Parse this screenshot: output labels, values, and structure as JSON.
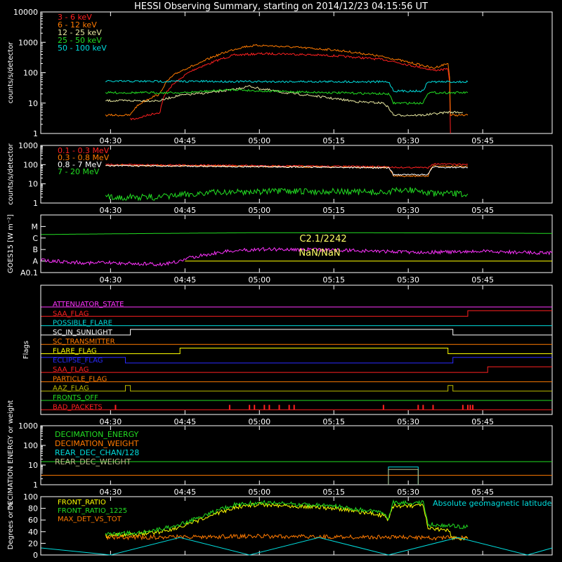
{
  "title": "HESSI Observing Summary, starting on 2014/12/23 04:15:56 UT",
  "time_axis": {
    "start": "04:15:56",
    "end": "05:59:00",
    "tick_labels": [
      "04:30",
      "04:45",
      "05:00",
      "05:15",
      "05:30",
      "05:45"
    ],
    "tick_times": [
      "04:30",
      "04:45",
      "05:00",
      "05:15",
      "05:30",
      "05:45"
    ]
  },
  "chart_data": [
    {
      "type": "line",
      "panel": "light_curves",
      "ylabel": "counts/s/detector",
      "yscale": "log",
      "ylim": [
        1,
        10000
      ],
      "y_tick_labels": [
        "1",
        "10",
        "100",
        "1000",
        "10000"
      ],
      "y_ticks": [
        1,
        10,
        100,
        1000,
        10000
      ],
      "series": [
        {
          "name": "3 - 6 keV",
          "color": "#ff2020",
          "x": [
            "04:34",
            "04:35",
            "04:40",
            "04:44",
            "04:50",
            "04:55",
            "05:00",
            "05:05",
            "05:15",
            "05:25",
            "05:30",
            "05:35",
            "05:38",
            "05:38:30"
          ],
          "y": [
            3,
            3,
            5,
            60,
            200,
            380,
            420,
            420,
            360,
            270,
            180,
            120,
            130,
            1
          ]
        },
        {
          "name": "6 - 12 keV",
          "color": "#ff7a00",
          "x": [
            "04:29",
            "04:34",
            "04:35",
            "04:40",
            "04:44",
            "04:48",
            "04:52",
            "04:57",
            "05:00",
            "05:05",
            "05:15",
            "05:25",
            "05:30",
            "05:35",
            "05:38",
            "05:38:30",
            "05:42"
          ],
          "y": [
            4,
            4,
            7,
            20,
            110,
            200,
            400,
            720,
            800,
            720,
            560,
            330,
            220,
            140,
            200,
            4,
            4
          ]
        },
        {
          "name": "12 - 25 keV",
          "color": "#e8e8a0",
          "x": [
            "04:29",
            "04:40",
            "04:44",
            "04:50",
            "04:55",
            "04:58",
            "05:00",
            "05:05",
            "05:15",
            "05:20",
            "05:25",
            "05:27",
            "05:33",
            "05:38",
            "05:41"
          ],
          "y": [
            12,
            12,
            18,
            22,
            28,
            36,
            30,
            22,
            14,
            11,
            10,
            4,
            4,
            5,
            5
          ]
        },
        {
          "name": "25 - 50 keV",
          "color": "#22dd22",
          "x": [
            "04:29",
            "04:45",
            "04:55",
            "05:00",
            "05:15",
            "05:26",
            "05:27",
            "05:33",
            "05:34",
            "05:42"
          ],
          "y": [
            22,
            22,
            28,
            25,
            22,
            20,
            10,
            10,
            22,
            22
          ]
        },
        {
          "name": "50 - 100 keV",
          "color": "#00dddd",
          "x": [
            "04:29",
            "04:45",
            "05:00",
            "05:15",
            "05:26",
            "05:27",
            "05:33",
            "05:34",
            "05:42"
          ],
          "y": [
            52,
            52,
            51,
            51,
            50,
            25,
            25,
            50,
            50
          ]
        }
      ]
    },
    {
      "type": "line",
      "panel": "high_energy",
      "ylabel": "counts/s/detector",
      "yscale": "log",
      "ylim": [
        1,
        1000
      ],
      "y_tick_labels": [
        "1",
        "10",
        "100",
        "1000"
      ],
      "y_ticks": [
        1,
        10,
        100,
        1000
      ],
      "series": [
        {
          "name": "0.1 - 0.3 MeV",
          "color": "#ff2020",
          "x": [
            "04:29",
            "04:45",
            "05:00",
            "05:15",
            "05:26",
            "05:27",
            "05:34",
            "05:35",
            "05:42"
          ],
          "y": [
            100,
            95,
            88,
            82,
            78,
            72,
            70,
            110,
            100
          ]
        },
        {
          "name": "0.3 - 0.8 MeV",
          "color": "#ff7a00",
          "x": [
            "04:29",
            "04:45",
            "05:00",
            "05:15",
            "05:26",
            "05:27",
            "05:34",
            "05:35",
            "05:42"
          ],
          "y": [
            90,
            85,
            80,
            75,
            70,
            25,
            25,
            85,
            80
          ]
        },
        {
          "name": "0.8 - 7 MeV",
          "color": "#ffffff",
          "x": [
            "04:29",
            "04:45",
            "05:00",
            "05:15",
            "05:26",
            "05:27",
            "05:34",
            "05:35",
            "05:42"
          ],
          "y": [
            88,
            84,
            78,
            73,
            68,
            30,
            30,
            75,
            70
          ]
        },
        {
          "name": "7 - 20 MeV",
          "color": "#22dd22",
          "x": [
            "04:29",
            "04:40",
            "04:50",
            "05:00",
            "05:15",
            "05:25",
            "05:30",
            "05:35",
            "05:42"
          ],
          "y": [
            2,
            2,
            3.5,
            4,
            4,
            3.5,
            5,
            3,
            3
          ]
        }
      ]
    },
    {
      "type": "line",
      "panel": "goes",
      "ylabel": "GOES15 [W m⁻²]",
      "yscale": "log",
      "class_labels": [
        "M",
        "C",
        "B",
        "A",
        "A0.1"
      ],
      "class_values": [
        "1e-5",
        "1e-6",
        "1e-7",
        "1e-8",
        "1e-9"
      ],
      "annotations": [
        "C2.1/2242",
        "NaN/NaN"
      ],
      "series": [
        {
          "name": "GOES high channel",
          "color": "#22dd22",
          "x": [
            "04:16",
            "04:30",
            "04:45",
            "05:00",
            "05:15",
            "05:30",
            "05:45",
            "05:59"
          ],
          "y": [
            2e-06,
            2.3e-06,
            2.6e-06,
            2.9e-06,
            2.9e-06,
            2.8e-06,
            2.7e-06,
            2.5e-06
          ]
        },
        {
          "name": "GOES low channel",
          "color": "#ff33ff",
          "x": [
            "04:16",
            "04:20",
            "04:25",
            "04:30",
            "04:35",
            "04:40",
            "04:44",
            "04:50",
            "04:55",
            "05:00",
            "05:10",
            "05:20",
            "05:30",
            "05:40",
            "05:45",
            "05:50",
            "05:59"
          ],
          "y": [
            1.2e-08,
            9e-09,
            7e-09,
            7e-09,
            6e-09,
            5e-09,
            9e-09,
            4e-08,
            8e-08,
            1.05e-07,
            1e-07,
            8e-08,
            6e-08,
            6e-08,
            7e-08,
            6e-08,
            5e-08
          ]
        },
        {
          "name": "GOES flat level",
          "color": "#ffff00",
          "x": [
            "04:45",
            "05:59"
          ],
          "y": [
            1e-08,
            1e-08
          ]
        }
      ]
    },
    {
      "type": "line",
      "panel": "flags",
      "ylabel": "Flags",
      "flags": [
        {
          "name": "ATTENUATOR_STATE",
          "color": "#ff33ff",
          "segments": [
            [
              "04:16",
              "05:59",
              0
            ]
          ]
        },
        {
          "name": "SAA_FLAG",
          "color": "#ff2020",
          "segments": [
            [
              "04:16",
              "05:42",
              0
            ],
            [
              "05:42",
              "05:59",
              1
            ]
          ]
        },
        {
          "name": "POSSIBLE_FLARE",
          "color": "#00dddd",
          "segments": [
            [
              "04:16",
              "05:59",
              0
            ]
          ]
        },
        {
          "name": "SC_IN_SUNLIGHT",
          "color": "#ffffff",
          "segments": [
            [
              "04:16",
              "04:34",
              0
            ],
            [
              "04:34",
              "05:39",
              1
            ],
            [
              "05:39",
              "05:59",
              0
            ]
          ]
        },
        {
          "name": "SC_TRANSMITTER",
          "color": "#ff7a00",
          "segments": [
            [
              "04:16",
              "05:59",
              0
            ]
          ]
        },
        {
          "name": "FLARE_FLAG",
          "color": "#ffff00",
          "segments": [
            [
              "04:16",
              "04:44",
              0
            ],
            [
              "04:44",
              "05:38",
              1
            ],
            [
              "05:38",
              "05:59",
              0
            ]
          ]
        },
        {
          "name": "ECLIPSE_FLAG",
          "color": "#2a2aff",
          "segments": [
            [
              "04:16",
              "04:33",
              1
            ],
            [
              "04:33",
              "05:39",
              0
            ],
            [
              "05:39",
              "05:59",
              1
            ]
          ]
        },
        {
          "name": "SAA_FLAG",
          "color": "#ff2020",
          "segments": [
            [
              "04:16",
              "05:46",
              0
            ],
            [
              "05:46",
              "05:59",
              1
            ]
          ]
        },
        {
          "name": "PARTICLE_FLAG",
          "color": "#ff7a00",
          "segments": [
            [
              "04:16",
              "05:59",
              0
            ]
          ]
        },
        {
          "name": "AAZ_FLAG",
          "color": "#bbbb00",
          "segments": [
            [
              "04:16",
              "04:33",
              0
            ],
            [
              "04:33",
              "04:34",
              1
            ],
            [
              "04:34",
              "05:38",
              0
            ],
            [
              "05:38",
              "05:39",
              1
            ],
            [
              "05:39",
              "05:59",
              0
            ]
          ]
        },
        {
          "name": "FRONTS_OFF",
          "color": "#22dd22",
          "segments": [
            [
              "04:16",
              "05:59",
              0
            ]
          ]
        },
        {
          "name": "BAD_PACKETS",
          "color": "#ff2020",
          "segments": [
            [
              "04:16",
              "05:59",
              0
            ]
          ],
          "spikes": [
            "04:31",
            "04:54",
            "04:58",
            "04:59",
            "05:01",
            "05:02",
            "05:04",
            "05:06",
            "05:07",
            "05:25",
            "05:32",
            "05:33",
            "05:35",
            "05:41",
            "05:42",
            "05:42:30",
            "05:43"
          ]
        }
      ]
    },
    {
      "type": "line",
      "panel": "decimation",
      "ylabel": "DECIMATION ENERGY or weight",
      "yscale": "log",
      "ylim": [
        1,
        1000
      ],
      "y_tick_labels": [
        "1",
        "10",
        "100",
        "1000"
      ],
      "y_ticks": [
        1,
        10,
        100,
        1000
      ],
      "series": [
        {
          "name": "DECIMATION_ENERGY",
          "color": "#22dd22",
          "x": [
            "04:16",
            "05:59"
          ],
          "y": [
            15,
            15
          ]
        },
        {
          "name": "DECIMATION_WEIGHT",
          "color": "#ff7a00",
          "x": [
            "04:16",
            "05:59"
          ],
          "y": [
            3,
            3
          ]
        },
        {
          "name": "REAR_DEC_CHAN/128",
          "color": "#00dddd",
          "x": [
            "05:26",
            "05:26",
            "05:32",
            "05:32"
          ],
          "y": [
            1,
            8,
            8,
            1
          ]
        },
        {
          "name": "REAR_DEC_WEIGHT",
          "color": "#bbbb88",
          "x": [
            "05:26",
            "05:26",
            "05:32",
            "05:32"
          ],
          "y": [
            1,
            6,
            6,
            1
          ]
        }
      ]
    },
    {
      "type": "line",
      "panel": "ratios",
      "ylabel": "Degrees or %",
      "ylim": [
        0,
        100
      ],
      "y_tick_labels": [
        "0",
        "20",
        "40",
        "60",
        "80",
        "100"
      ],
      "y_ticks": [
        0,
        20,
        40,
        60,
        80,
        100
      ],
      "annotations": [
        "Absolute geomagnetic latitude"
      ],
      "series": [
        {
          "name": "FRONT_RATIO",
          "color": "#ffff00",
          "x": [
            "04:29",
            "04:35",
            "04:40",
            "04:45",
            "04:50",
            "04:55",
            "05:00",
            "05:05",
            "05:10",
            "05:15",
            "05:20",
            "05:25",
            "05:26",
            "05:27",
            "05:33",
            "05:34",
            "05:38",
            "05:39",
            "05:42"
          ],
          "y": [
            33,
            35,
            40,
            50,
            66,
            82,
            87,
            85,
            83,
            80,
            74,
            68,
            60,
            84,
            84,
            45,
            42,
            30,
            28
          ]
        },
        {
          "name": "FRONT_RATIO_1225",
          "color": "#22dd22",
          "x": [
            "04:29",
            "04:35",
            "04:40",
            "04:45",
            "04:50",
            "04:55",
            "05:00",
            "05:05",
            "05:10",
            "05:15",
            "05:20",
            "05:25",
            "05:26",
            "05:27",
            "05:33",
            "05:34",
            "05:38",
            "05:39",
            "05:42"
          ],
          "y": [
            35,
            38,
            44,
            55,
            72,
            86,
            90,
            88,
            86,
            84,
            78,
            72,
            64,
            90,
            90,
            52,
            50,
            50,
            48
          ]
        },
        {
          "name": "MAX_DET_VS_TOT",
          "color": "#ff7a00",
          "x": [
            "04:29",
            "04:45",
            "05:00",
            "05:15",
            "05:30",
            "05:42"
          ],
          "y": [
            30,
            31,
            32,
            31,
            30,
            29
          ]
        },
        {
          "name": "Absolute geomagnetic latitude",
          "color": "#00dddd",
          "x": [
            "04:16",
            "04:30",
            "04:44",
            "04:58",
            "05:12",
            "05:26",
            "05:40",
            "05:54",
            "05:59"
          ],
          "y": [
            12,
            0,
            30,
            0,
            30,
            0,
            30,
            0,
            12
          ]
        }
      ]
    }
  ]
}
